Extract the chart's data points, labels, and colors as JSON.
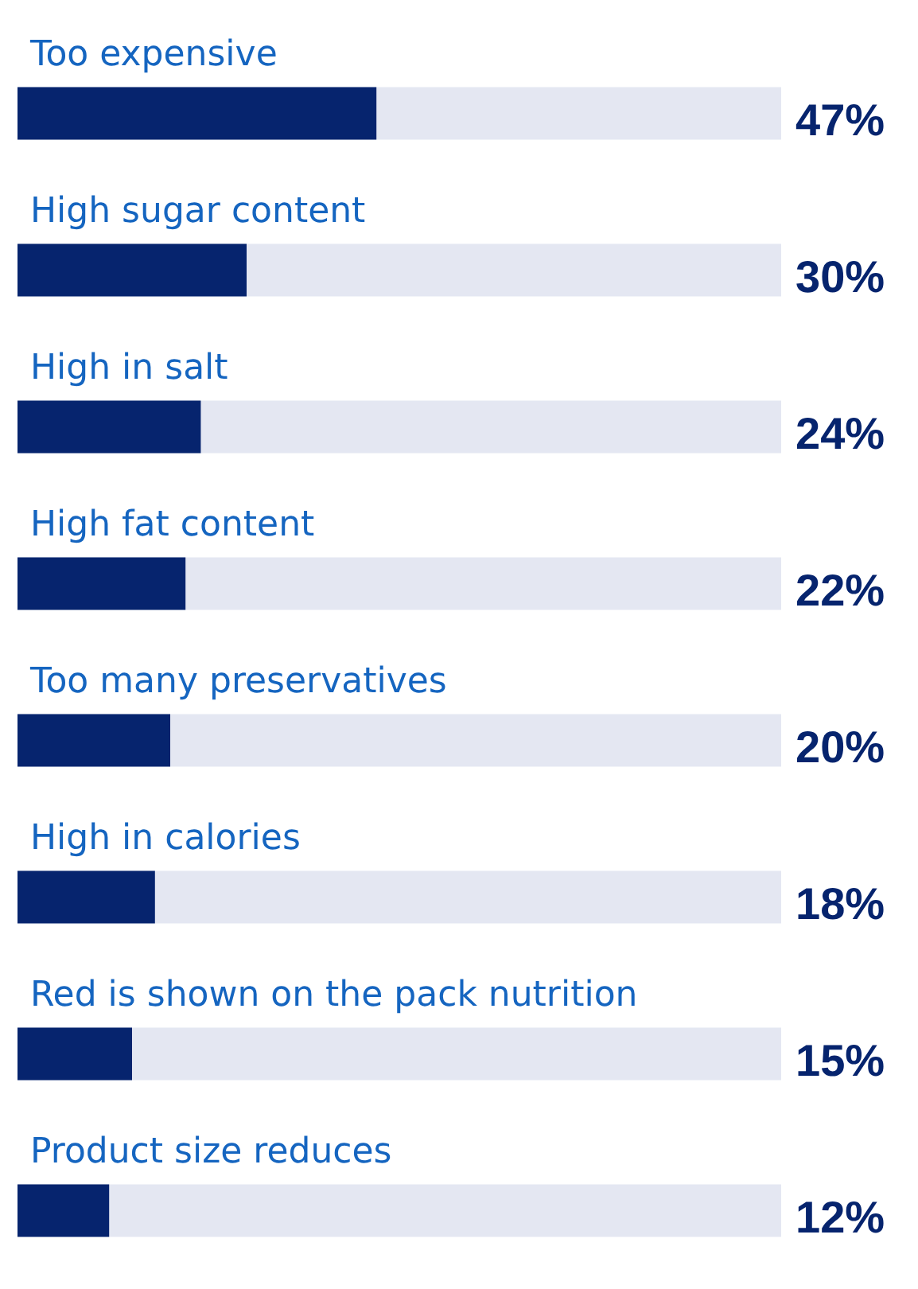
{
  "chart_data": {
    "type": "bar",
    "orientation": "horizontal",
    "categories": [
      "Too expensive",
      "High sugar content",
      "High in salt",
      "High fat content",
      "Too many preservatives",
      "High in calories",
      "Red is shown on the pack nutrition",
      "Product size reduces"
    ],
    "values": [
      47,
      30,
      24,
      22,
      20,
      18,
      15,
      12
    ],
    "value_labels": [
      "47%",
      "30%",
      "24%",
      "22%",
      "20%",
      "18%",
      "15%",
      "12%"
    ],
    "color": "#06246e",
    "xlim": [
      0,
      100
    ],
    "tick_labels": "y"
  }
}
